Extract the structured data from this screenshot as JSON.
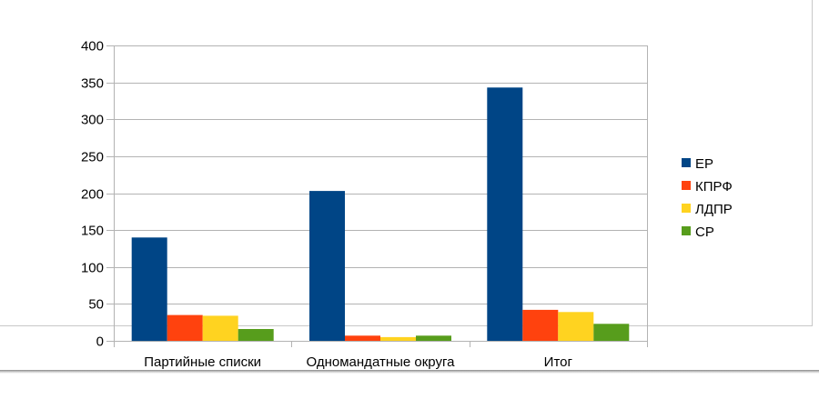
{
  "chart_data": {
    "type": "bar",
    "title": "",
    "xlabel": "",
    "ylabel": "",
    "categories": [
      "Партийные списки",
      "Одномандатные округа",
      "Итог"
    ],
    "series": [
      {
        "name": "ЕР",
        "color": "#004586",
        "values": [
          140,
          203,
          343
        ]
      },
      {
        "name": "КПРФ",
        "color": "#ff420e",
        "values": [
          35,
          7,
          42
        ]
      },
      {
        "name": "ЛДПР",
        "color": "#ffd320",
        "values": [
          34,
          5,
          39
        ]
      },
      {
        "name": "СР",
        "color": "#579d1c",
        "values": [
          16,
          7,
          23
        ]
      }
    ],
    "ylim": [
      0,
      400
    ],
    "yticks": [
      0,
      50,
      100,
      150,
      200,
      250,
      300,
      350,
      400
    ],
    "grid": true,
    "legend_position": "right"
  }
}
